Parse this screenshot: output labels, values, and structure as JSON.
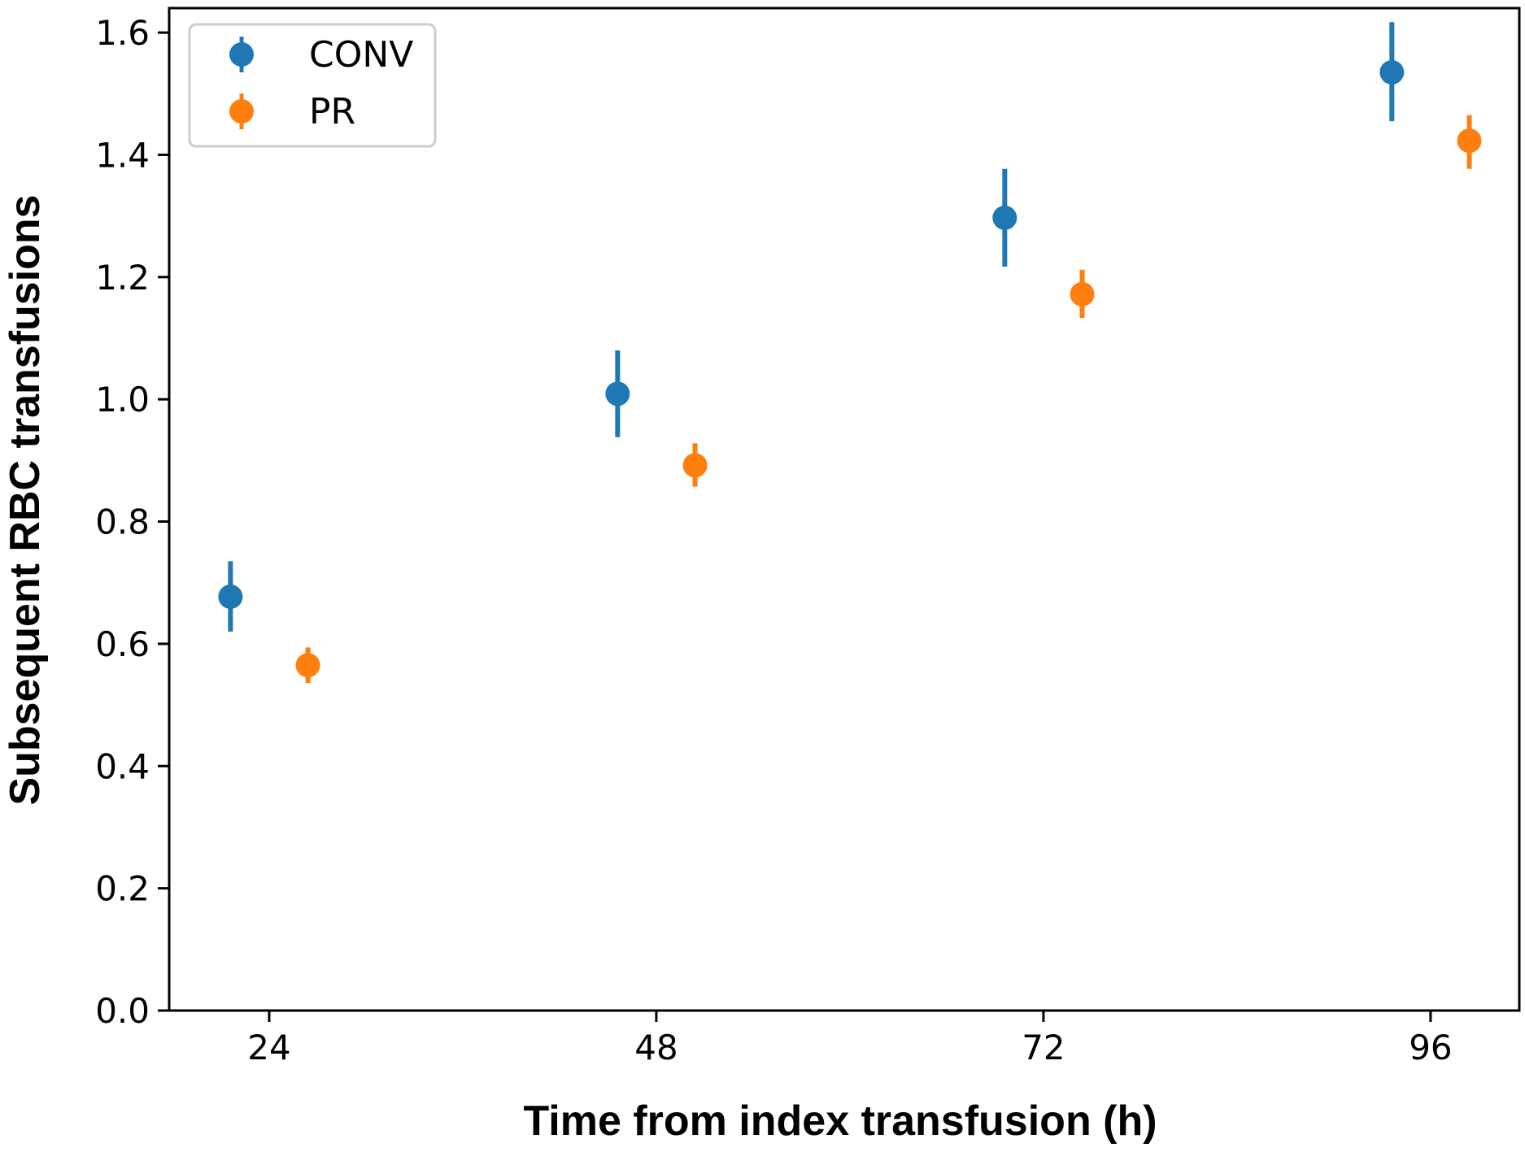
{
  "chart_data": {
    "type": "scatter",
    "title": "",
    "xlabel": "Time from index transfusion (h)",
    "ylabel": "Subsequent RBC transfusions",
    "x_ticks": [
      "24",
      "48",
      "72",
      "96"
    ],
    "y_ticks": [
      "0.0",
      "0.2",
      "0.4",
      "0.6",
      "0.8",
      "1.0",
      "1.2",
      "1.4",
      "1.6"
    ],
    "xlim": [
      17.8,
      101.5
    ],
    "ylim": [
      0,
      1.64
    ],
    "grid": false,
    "legend_position": "top-left",
    "series": [
      {
        "name": "CONV",
        "color": "#1f77b4",
        "x": [
          21.6,
          45.6,
          69.6,
          93.6
        ],
        "y": [
          0.677,
          1.009,
          1.297,
          1.535
        ],
        "err_low": [
          0.62,
          0.938,
          1.217,
          1.455
        ],
        "err_high": [
          0.735,
          1.08,
          1.377,
          1.617
        ]
      },
      {
        "name": "PR",
        "color": "#ff7f0e",
        "x": [
          26.4,
          50.4,
          74.4,
          98.4
        ],
        "y": [
          0.565,
          0.892,
          1.172,
          1.423
        ],
        "err_low": [
          0.536,
          0.857,
          1.133,
          1.377
        ],
        "err_high": [
          0.594,
          0.928,
          1.212,
          1.465
        ]
      }
    ]
  }
}
